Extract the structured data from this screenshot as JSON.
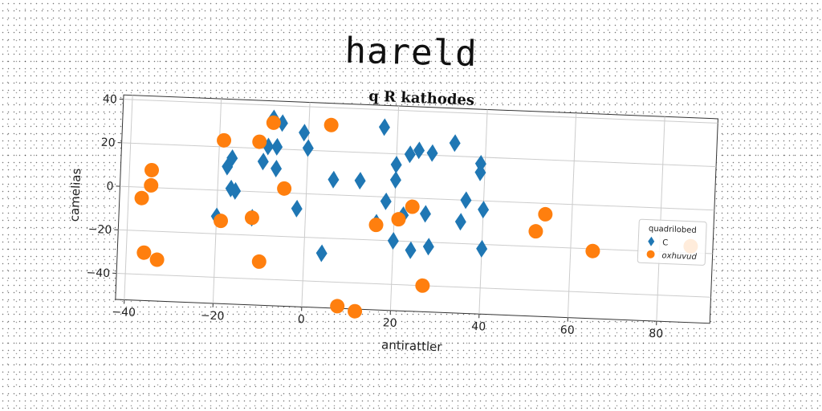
{
  "page": {
    "title": "hareld"
  },
  "chart_data": {
    "type": "scatter",
    "title": "q R kathodes",
    "xlabel": "antirattler",
    "ylabel": "camelias",
    "xlim": [
      -42,
      92
    ],
    "ylim": [
      -52,
      42
    ],
    "xticks": [
      -40,
      -20,
      0,
      20,
      40,
      60,
      80
    ],
    "yticks": [
      -40,
      -20,
      0,
      20,
      40
    ],
    "grid": true,
    "legend": {
      "title": "quadrilobed",
      "placement": "right"
    },
    "series": [
      {
        "name": "C",
        "color": "#1f77b4",
        "marker": "diamond",
        "points": [
          [
            -8,
            34
          ],
          [
            -6,
            32
          ],
          [
            -7,
            21
          ],
          [
            -9,
            21
          ],
          [
            -10,
            14
          ],
          [
            -7,
            11
          ],
          [
            -18,
            11
          ],
          [
            -17,
            15
          ],
          [
            -16,
            0
          ],
          [
            -17,
            1
          ],
          [
            -20,
            -12
          ],
          [
            -12,
            -12
          ],
          [
            -1,
            28
          ],
          [
            0,
            21
          ],
          [
            -2,
            -7
          ],
          [
            6,
            7
          ],
          [
            12,
            7
          ],
          [
            17,
            32
          ],
          [
            20,
            15
          ],
          [
            20,
            8
          ],
          [
            18,
            -2
          ],
          [
            23,
            20
          ],
          [
            25,
            22
          ],
          [
            28,
            21
          ],
          [
            33,
            26
          ],
          [
            36,
            0
          ],
          [
            39,
            17
          ],
          [
            39,
            13
          ],
          [
            40,
            -4
          ],
          [
            16,
            -12
          ],
          [
            22,
            -8
          ],
          [
            27,
            -7
          ],
          [
            35,
            -10
          ],
          [
            20,
            -20
          ],
          [
            24,
            -24
          ],
          [
            28,
            -22
          ],
          [
            40,
            -22
          ],
          [
            4,
            -27
          ]
        ]
      },
      {
        "name": "oxhuvud",
        "color": "#ff7f0e",
        "marker": "circle",
        "points": [
          [
            -8,
            32
          ],
          [
            5,
            32
          ],
          [
            -19,
            23
          ],
          [
            -11,
            23
          ],
          [
            -35,
            8
          ],
          [
            -35,
            1
          ],
          [
            -37,
            -5
          ],
          [
            -5,
            2
          ],
          [
            -19,
            -14
          ],
          [
            -12,
            -12
          ],
          [
            -36,
            -30
          ],
          [
            -33,
            -33
          ],
          [
            -10,
            -32
          ],
          [
            8,
            -51
          ],
          [
            12,
            -53
          ],
          [
            16,
            -13
          ],
          [
            21,
            -10
          ],
          [
            24,
            -4
          ],
          [
            27,
            -40
          ],
          [
            52,
            -13
          ],
          [
            54,
            -5
          ],
          [
            65,
            -21
          ],
          [
            87,
            -17
          ]
        ]
      }
    ]
  }
}
